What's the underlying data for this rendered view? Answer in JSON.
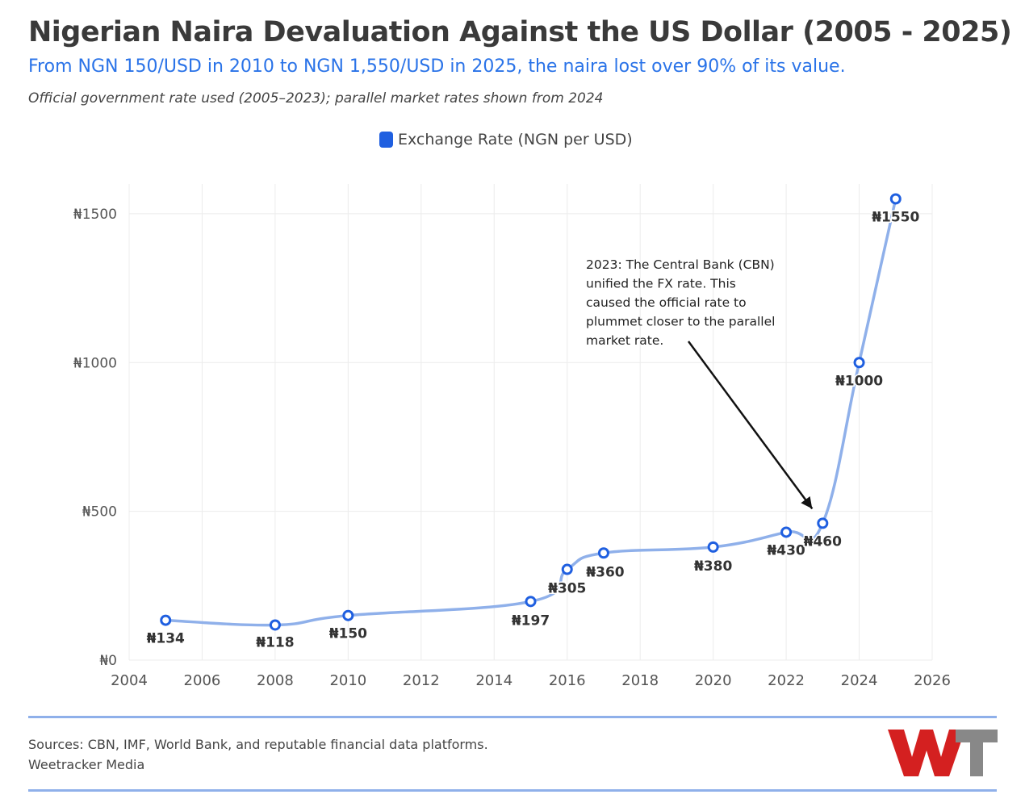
{
  "header": {
    "title": "Nigerian Naira Devaluation Against the US Dollar (2005 - 2025)",
    "subtitle": "From NGN 150/USD in 2010 to NGN 1,550/USD in 2025, the naira lost over 90% of its value.",
    "note": "Official government rate used (2005–2023); parallel market rates shown from 2024"
  },
  "legend": {
    "label": "Exchange Rate (NGN per USD)"
  },
  "colors": {
    "line": "#8fb0ea",
    "marker": "#1f5fe0",
    "subtitle": "#2a73e8",
    "logo_red": "#d42020",
    "logo_gray": "#888888"
  },
  "chart_data": {
    "type": "line",
    "title": "Nigerian Naira Devaluation Against the US Dollar (2005 - 2025)",
    "xlabel": "",
    "ylabel": "",
    "xlim": [
      2004,
      2026
    ],
    "ylim": [
      0,
      1600
    ],
    "xticks": [
      2004,
      2006,
      2008,
      2010,
      2012,
      2014,
      2016,
      2018,
      2020,
      2022,
      2024,
      2026
    ],
    "yticks": [
      0,
      500,
      1000,
      1500
    ],
    "ytick_labels": [
      "₦0",
      "₦500",
      "₦1000",
      "₦1500"
    ],
    "grid": true,
    "legend_position": "top-center",
    "series": [
      {
        "name": "Exchange Rate (NGN per USD)",
        "x": [
          2005,
          2008,
          2010,
          2015,
          2016,
          2017,
          2020,
          2022,
          2023,
          2024,
          2025
        ],
        "values": [
          134,
          118,
          150,
          197,
          305,
          360,
          380,
          430,
          460,
          1000,
          1550
        ],
        "labels": [
          "₦134",
          "₦118",
          "₦150",
          "₦197",
          "₦305",
          "₦360",
          "₦380",
          "₦430",
          "₦460",
          "₦1000",
          "₦1550"
        ]
      }
    ],
    "annotation": {
      "text_lines": [
        "2023: The Central Bank (CBN)",
        "unified the FX rate. This",
        "caused the official rate to",
        "plummet closer to the parallel",
        "market rate."
      ],
      "target_x": 2023,
      "target_y": 460
    }
  },
  "footer": {
    "sources": "Sources: CBN, IMF, World Bank, and reputable financial data platforms.",
    "publisher": "Weetracker Media",
    "logo_text": "WT"
  }
}
